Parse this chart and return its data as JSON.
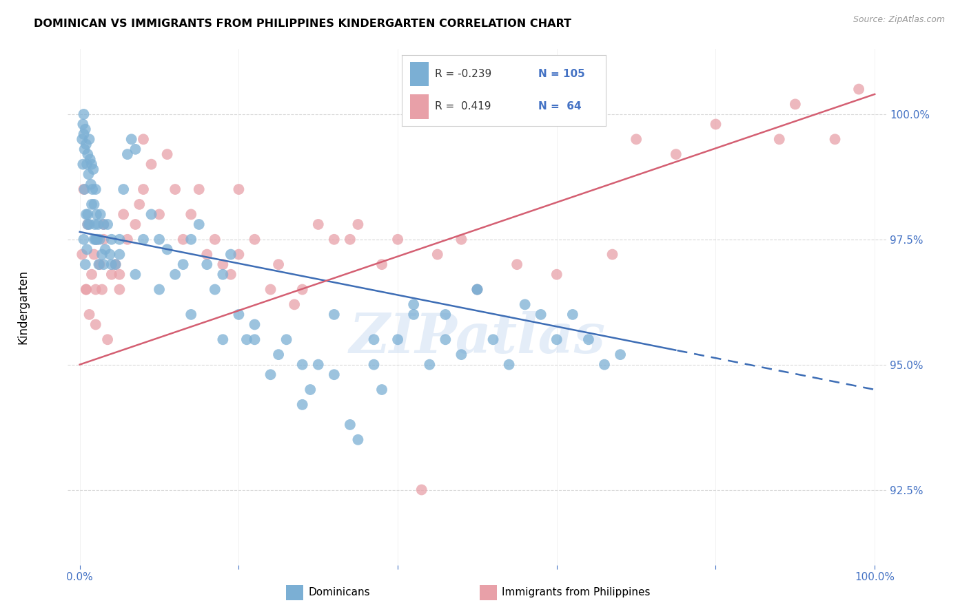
{
  "title": "DOMINICAN VS IMMIGRANTS FROM PHILIPPINES KINDERGARTEN CORRELATION CHART",
  "source": "Source: ZipAtlas.com",
  "ylabel": "Kindergarten",
  "xmin": 0.0,
  "xmax": 100.0,
  "ymin": 91.0,
  "ymax": 101.3,
  "blue_color": "#7bafd4",
  "pink_color": "#e8a0a8",
  "blue_line_color": "#3d6db5",
  "pink_line_color": "#d45f72",
  "legend_R_blue": "-0.239",
  "legend_N_blue": "105",
  "legend_R_pink": "0.419",
  "legend_N_pink": "64",
  "watermark": "ZIPatlas",
  "blue_trend_x0": 0,
  "blue_trend_y0": 97.65,
  "blue_trend_x1": 100,
  "blue_trend_y1": 94.5,
  "blue_dash_start": 75,
  "pink_trend_x0": 0,
  "pink_trend_y0": 95.0,
  "pink_trend_x1": 100,
  "pink_trend_y1": 100.4,
  "grid_color": "#d8d8d8",
  "tick_color": "#4472c4",
  "yticks": [
    92.5,
    95.0,
    97.5,
    100.0
  ],
  "xticks": [
    0,
    20,
    40,
    60,
    80,
    100
  ],
  "blue_x": [
    0.3,
    0.4,
    0.5,
    0.5,
    0.6,
    0.7,
    0.8,
    0.9,
    1.0,
    1.1,
    1.2,
    1.3,
    1.4,
    1.5,
    1.6,
    1.7,
    1.8,
    1.9,
    2.0,
    2.1,
    2.2,
    2.3,
    2.5,
    2.6,
    2.8,
    3.0,
    3.2,
    3.5,
    3.8,
    4.0,
    4.5,
    5.0,
    5.5,
    6.0,
    6.5,
    7.0,
    8.0,
    9.0,
    10.0,
    11.0,
    12.0,
    13.0,
    14.0,
    15.0,
    16.0,
    17.0,
    18.0,
    19.0,
    20.0,
    21.0,
    22.0,
    24.0,
    25.0,
    26.0,
    28.0,
    29.0,
    30.0,
    32.0,
    34.0,
    35.0,
    37.0,
    38.0,
    40.0,
    42.0,
    44.0,
    46.0,
    48.0,
    50.0,
    52.0,
    54.0,
    56.0,
    58.0,
    60.0,
    62.0,
    64.0,
    66.0,
    68.0,
    50.0,
    46.0,
    42.0,
    37.0,
    32.0,
    28.0,
    22.0,
    18.0,
    14.0,
    10.0,
    7.0,
    4.0,
    2.0,
    1.0,
    0.8,
    0.6,
    0.4,
    5.0,
    3.0,
    2.0,
    1.5,
    1.0,
    0.5,
    0.7,
    0.9,
    1.2,
    1.8,
    2.4
  ],
  "blue_y": [
    99.5,
    99.8,
    99.6,
    100.0,
    99.3,
    99.7,
    99.4,
    99.0,
    99.2,
    98.8,
    99.5,
    99.1,
    98.6,
    99.0,
    98.5,
    98.9,
    98.2,
    97.8,
    98.5,
    98.0,
    97.5,
    97.8,
    97.5,
    98.0,
    97.2,
    97.0,
    97.3,
    97.8,
    97.2,
    97.5,
    97.0,
    97.5,
    98.5,
    99.2,
    99.5,
    99.3,
    97.5,
    98.0,
    97.5,
    97.3,
    96.8,
    97.0,
    97.5,
    97.8,
    97.0,
    96.5,
    96.8,
    97.2,
    96.0,
    95.5,
    95.8,
    94.8,
    95.2,
    95.5,
    94.2,
    94.5,
    95.0,
    94.8,
    93.8,
    93.5,
    95.0,
    94.5,
    95.5,
    96.0,
    95.0,
    95.5,
    95.2,
    96.5,
    95.5,
    95.0,
    96.2,
    96.0,
    95.5,
    96.0,
    95.5,
    95.0,
    95.2,
    96.5,
    96.0,
    96.2,
    95.5,
    96.0,
    95.0,
    95.5,
    95.5,
    96.0,
    96.5,
    96.8,
    97.0,
    97.5,
    97.8,
    98.0,
    98.5,
    99.0,
    97.2,
    97.8,
    97.5,
    98.2,
    98.0,
    97.5,
    97.0,
    97.3,
    97.8,
    97.5,
    97.0
  ],
  "pink_x": [
    0.3,
    0.5,
    0.8,
    1.0,
    1.2,
    1.5,
    1.8,
    2.0,
    2.2,
    2.5,
    2.8,
    3.0,
    3.5,
    4.0,
    4.5,
    5.0,
    5.5,
    6.0,
    7.0,
    7.5,
    8.0,
    9.0,
    10.0,
    11.0,
    12.0,
    13.0,
    14.0,
    15.0,
    16.0,
    17.0,
    18.0,
    19.0,
    20.0,
    22.0,
    24.0,
    25.0,
    27.0,
    28.0,
    30.0,
    32.0,
    34.0,
    35.0,
    38.0,
    40.0,
    45.0,
    48.0,
    50.0,
    55.0,
    60.0,
    67.0,
    70.0,
    75.0,
    80.0,
    88.0,
    90.0,
    95.0,
    98.0,
    43.0,
    20.0,
    8.0,
    5.0,
    3.0,
    2.0,
    0.8
  ],
  "pink_y": [
    97.2,
    98.5,
    96.5,
    97.8,
    96.0,
    96.8,
    97.2,
    96.5,
    97.5,
    97.0,
    96.5,
    97.8,
    95.5,
    96.8,
    97.0,
    96.5,
    98.0,
    97.5,
    97.8,
    98.2,
    98.5,
    99.0,
    98.0,
    99.2,
    98.5,
    97.5,
    98.0,
    98.5,
    97.2,
    97.5,
    97.0,
    96.8,
    97.2,
    97.5,
    96.5,
    97.0,
    96.2,
    96.5,
    97.8,
    97.5,
    97.5,
    97.8,
    97.0,
    97.5,
    97.2,
    97.5,
    96.5,
    97.0,
    96.8,
    97.2,
    99.5,
    99.2,
    99.8,
    99.5,
    100.2,
    99.5,
    100.5,
    92.5,
    98.5,
    99.5,
    96.8,
    97.5,
    95.8,
    96.5
  ]
}
